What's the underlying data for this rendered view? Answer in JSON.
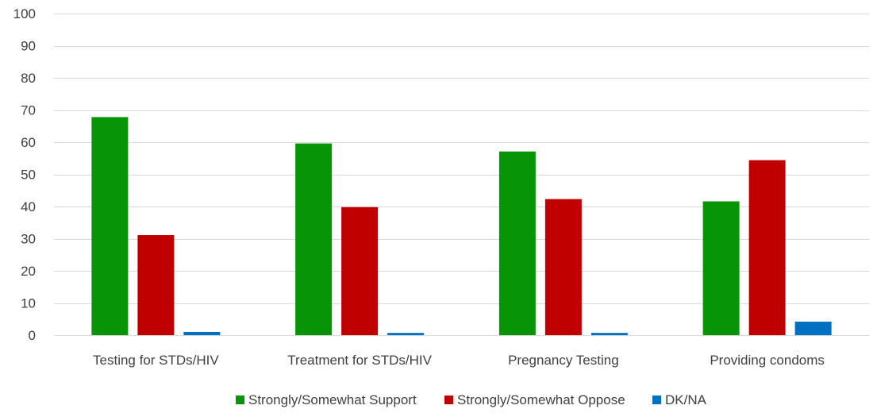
{
  "chart_data": {
    "type": "bar",
    "categories": [
      "Testing for STDs/HIV",
      "Treatment for STDs/HIV",
      "Pregnancy Testing",
      "Providing condoms"
    ],
    "series": [
      {
        "name": "Strongly/Somewhat Support",
        "color": "#079507",
        "values": [
          67.8,
          59.6,
          57.1,
          41.6
        ]
      },
      {
        "name": "Strongly/Somewhat Oppose",
        "color": "#C00000",
        "values": [
          31.1,
          39.8,
          42.3,
          54.4
        ]
      },
      {
        "name": "DK/NA",
        "color": "#0070C0",
        "values": [
          1.0,
          0.7,
          0.7,
          4.2
        ]
      }
    ],
    "ylim": [
      0,
      100
    ],
    "yticks": [
      0,
      10,
      20,
      30,
      40,
      50,
      60,
      70,
      80,
      90,
      100
    ],
    "title": "",
    "xlabel": "",
    "ylabel": "",
    "grid": true,
    "legend_position": "bottom"
  }
}
